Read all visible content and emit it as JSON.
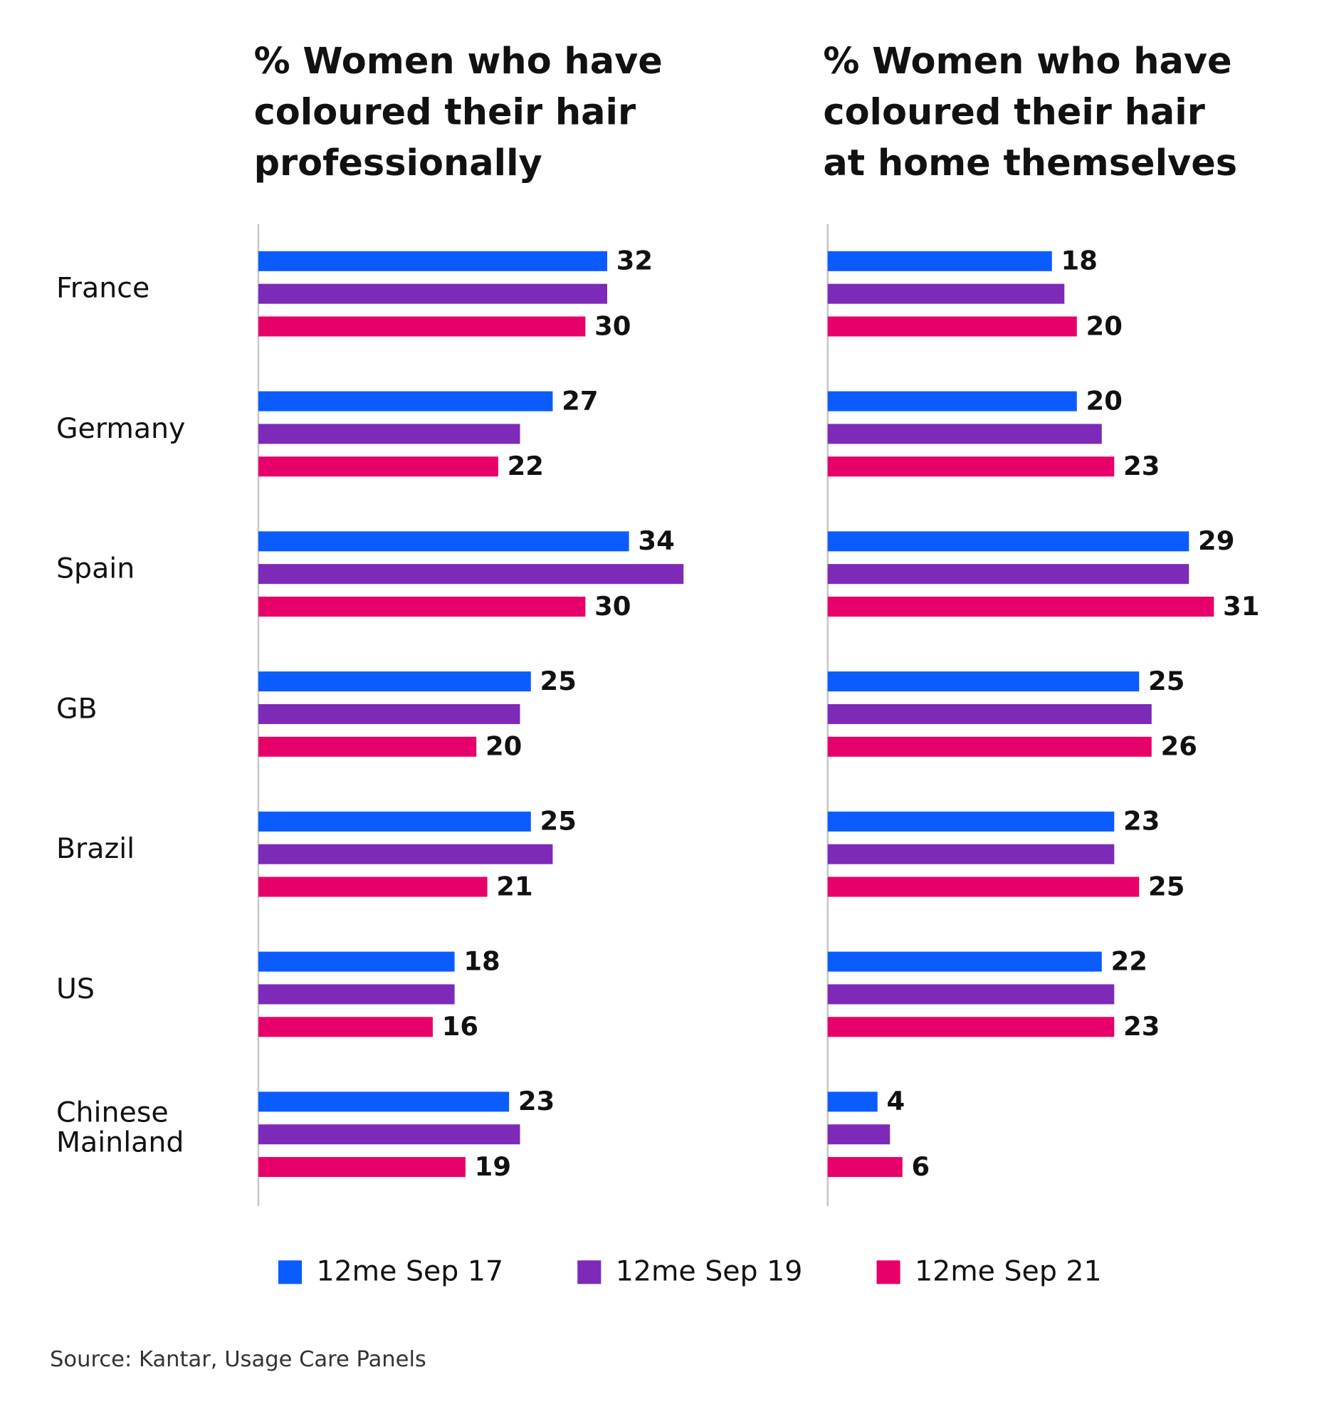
{
  "chart_data": [
    {
      "type": "bar",
      "orientation": "horizontal",
      "title": "% Women who have coloured their hair professionally",
      "categories": [
        "France",
        "Germany",
        "Spain",
        "GB",
        "Brazil",
        "US",
        "Chinese Mainland"
      ],
      "series": [
        {
          "name": "12me Sep 17",
          "color": "#0a5cff",
          "values": [
            32,
            27,
            34,
            25,
            25,
            18,
            23
          ]
        },
        {
          "name": "12me Sep 19",
          "color": "#7d2ab8",
          "values": [
            32,
            24,
            39,
            24,
            27,
            18,
            24
          ],
          "show_labels": false
        },
        {
          "name": "12me Sep 21",
          "color": "#e8006a",
          "values": [
            30,
            22,
            30,
            20,
            21,
            16,
            19
          ]
        }
      ],
      "xlim": [
        0,
        40
      ]
    },
    {
      "type": "bar",
      "orientation": "horizontal",
      "title": "% Women who have coloured their hair at home themselves",
      "categories": [
        "France",
        "Germany",
        "Spain",
        "GB",
        "Brazil",
        "US",
        "Chinese Mainland"
      ],
      "series": [
        {
          "name": "12me Sep 17",
          "color": "#0a5cff",
          "values": [
            18,
            20,
            29,
            25,
            23,
            22,
            4
          ]
        },
        {
          "name": "12me Sep 19",
          "color": "#7d2ab8",
          "values": [
            19,
            22,
            29,
            26,
            23,
            23,
            5
          ],
          "show_labels": false
        },
        {
          "name": "12me Sep 21",
          "color": "#e8006a",
          "values": [
            20,
            23,
            31,
            26,
            25,
            23,
            6
          ]
        }
      ],
      "xlim": [
        0,
        35
      ]
    }
  ],
  "source": "Source: Kantar, Usage Care Panels"
}
